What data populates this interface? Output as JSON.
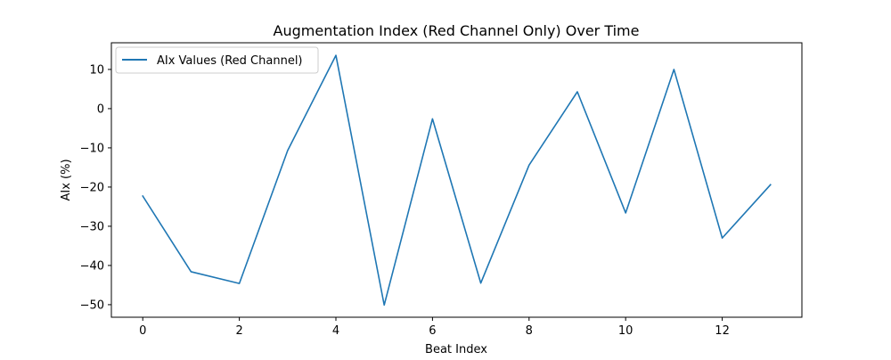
{
  "chart_data": {
    "type": "line",
    "title": "Augmentation Index (Red Channel Only) Over Time",
    "xlabel": "Beat Index",
    "ylabel": "AIx (%)",
    "xlim": [
      -0.65,
      13.65
    ],
    "ylim": [
      -53.2,
      16.8
    ],
    "xticks": [
      0,
      2,
      4,
      6,
      8,
      10,
      12
    ],
    "yticks": [
      10,
      0,
      -10,
      -20,
      -30,
      -40,
      -50
    ],
    "grid": false,
    "legend_position": "top-left",
    "series": [
      {
        "name": "AIx Values (Red Channel)",
        "color": "#1f77b4",
        "x": [
          0,
          1,
          2,
          3,
          4,
          5,
          6,
          7,
          8,
          9,
          10,
          11,
          12,
          13
        ],
        "y": [
          -22.3,
          -41.6,
          -44.6,
          -10.7,
          13.6,
          -50.1,
          -2.6,
          -44.5,
          -14.4,
          4.3,
          -26.6,
          10.0,
          -33.0,
          -19.4
        ]
      }
    ]
  }
}
